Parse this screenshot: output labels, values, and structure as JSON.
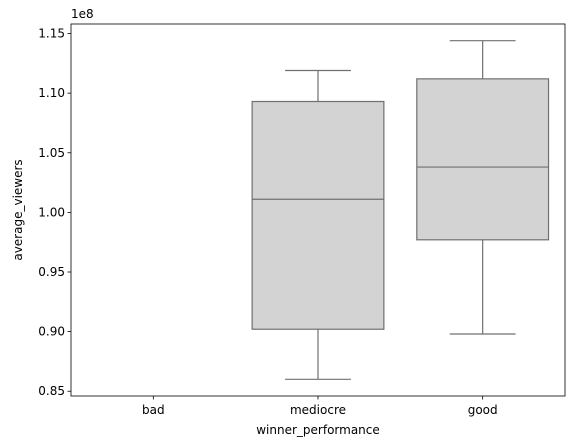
{
  "chart_data": {
    "type": "box",
    "xlabel": "winner_performance",
    "ylabel": "average_viewers",
    "offset_label": "1e8",
    "categories": [
      "bad",
      "mediocre",
      "good"
    ],
    "boxes": [
      {
        "category": "bad",
        "min": null,
        "q1": null,
        "median": null,
        "q3": null,
        "max": null
      },
      {
        "category": "mediocre",
        "min": 0.86,
        "q1": 0.902,
        "median": 1.011,
        "q3": 1.093,
        "max": 1.119
      },
      {
        "category": "good",
        "min": 0.898,
        "q1": 0.977,
        "median": 1.038,
        "q3": 1.112,
        "max": 1.144
      }
    ],
    "yticks": [
      "0.85",
      "0.90",
      "0.95",
      "1.00",
      "1.05",
      "1.10",
      "1.15"
    ],
    "ylim": [
      0.846,
      1.158
    ],
    "box_color": "#d3d3d3",
    "line_color": "#707070",
    "grid": false,
    "legend": "none"
  }
}
